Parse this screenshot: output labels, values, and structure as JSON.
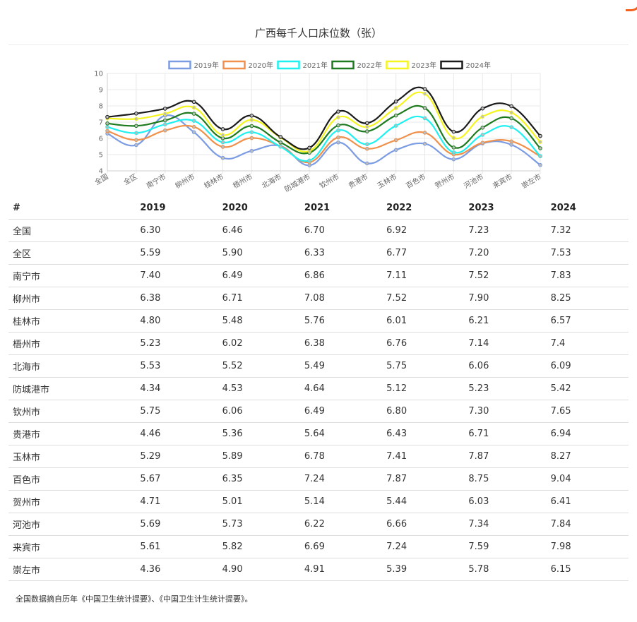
{
  "title": "广西每千人口床位数（张）",
  "note": "全国数据摘自历年《中国卫生统计提要》、《中国卫生计生统计提要》。",
  "table": {
    "corner": "#",
    "years": [
      "2019",
      "2020",
      "2021",
      "2022",
      "2023",
      "2024"
    ],
    "rows": [
      {
        "name": "全国",
        "vals": [
          "6.30",
          "6.46",
          "6.70",
          "6.92",
          "7.23",
          "7.32"
        ]
      },
      {
        "name": "全区",
        "vals": [
          "5.59",
          "5.90",
          "6.33",
          "6.77",
          "7.20",
          "7.53"
        ]
      },
      {
        "name": "南宁市",
        "vals": [
          "7.40",
          "6.49",
          "6.86",
          "7.11",
          "7.52",
          "7.83"
        ]
      },
      {
        "name": "柳州市",
        "vals": [
          "6.38",
          "6.71",
          "7.08",
          "7.52",
          "7.90",
          "8.25"
        ]
      },
      {
        "name": "桂林市",
        "vals": [
          "4.80",
          "5.48",
          "5.76",
          "6.01",
          "6.21",
          "6.57"
        ]
      },
      {
        "name": "梧州市",
        "vals": [
          "5.23",
          "6.02",
          "6.38",
          "6.76",
          "7.14",
          "7.4"
        ]
      },
      {
        "name": "北海市",
        "vals": [
          "5.53",
          "5.52",
          "5.49",
          "5.75",
          "6.06",
          "6.09"
        ]
      },
      {
        "name": "防城港市",
        "vals": [
          "4.34",
          "4.53",
          "4.64",
          "5.12",
          "5.23",
          "5.42"
        ]
      },
      {
        "name": "钦州市",
        "vals": [
          "5.75",
          "6.06",
          "6.49",
          "6.80",
          "7.30",
          "7.65"
        ]
      },
      {
        "name": "贵港市",
        "vals": [
          "4.46",
          "5.36",
          "5.64",
          "6.43",
          "6.71",
          "6.94"
        ]
      },
      {
        "name": "玉林市",
        "vals": [
          "5.29",
          "5.89",
          "6.78",
          "7.41",
          "7.87",
          "8.27"
        ]
      },
      {
        "name": "百色市",
        "vals": [
          "5.67",
          "6.35",
          "7.24",
          "7.87",
          "8.75",
          "9.04"
        ]
      },
      {
        "name": "贺州市",
        "vals": [
          "4.71",
          "5.01",
          "5.14",
          "5.44",
          "6.03",
          "6.41"
        ]
      },
      {
        "name": "河池市",
        "vals": [
          "5.69",
          "5.73",
          "6.22",
          "6.66",
          "7.34",
          "7.84"
        ]
      },
      {
        "name": "来宾市",
        "vals": [
          "5.61",
          "5.82",
          "6.69",
          "7.24",
          "7.59",
          "7.98"
        ]
      },
      {
        "name": "崇左市",
        "vals": [
          "4.36",
          "4.90",
          "4.91",
          "5.39",
          "5.78",
          "6.15"
        ]
      }
    ]
  },
  "chart_data": {
    "type": "line",
    "title": "广西每千人口床位数（张）",
    "xlabel": "",
    "ylabel": "",
    "categories": [
      "全国",
      "全区",
      "南宁市",
      "柳州市",
      "桂林市",
      "梧州市",
      "北海市",
      "防城港市",
      "钦州市",
      "贵港市",
      "玉林市",
      "百色市",
      "贺州市",
      "河池市",
      "来宾市",
      "崇左市"
    ],
    "ylim": [
      4,
      10
    ],
    "yticks": [
      4,
      5,
      6,
      7,
      8,
      9,
      10
    ],
    "grid": true,
    "legend_position": "top",
    "series": [
      {
        "name": "2019年",
        "color": "#7b9ce3",
        "values": [
          6.3,
          5.59,
          7.4,
          6.38,
          4.8,
          5.23,
          5.53,
          4.34,
          5.75,
          4.46,
          5.29,
          5.67,
          4.71,
          5.69,
          5.61,
          4.36
        ]
      },
      {
        "name": "2020年",
        "color": "#f0904a",
        "values": [
          6.46,
          5.9,
          6.49,
          6.71,
          5.48,
          6.02,
          5.52,
          4.53,
          6.06,
          5.36,
          5.89,
          6.35,
          5.01,
          5.73,
          5.82,
          4.9
        ]
      },
      {
        "name": "2021年",
        "color": "#1ff0f0",
        "values": [
          6.7,
          6.33,
          6.86,
          7.08,
          5.76,
          6.38,
          5.49,
          4.64,
          6.49,
          5.64,
          6.78,
          7.24,
          5.14,
          6.22,
          6.69,
          4.91
        ]
      },
      {
        "name": "2022年",
        "color": "#1e7a1e",
        "values": [
          6.92,
          6.77,
          7.11,
          7.52,
          6.01,
          6.76,
          5.75,
          5.12,
          6.8,
          6.43,
          7.41,
          7.87,
          5.44,
          6.66,
          7.24,
          5.39
        ]
      },
      {
        "name": "2023年",
        "color": "#f5f520",
        "values": [
          7.23,
          7.2,
          7.52,
          7.9,
          6.21,
          7.14,
          6.06,
          5.23,
          7.3,
          6.71,
          7.87,
          8.75,
          6.03,
          7.34,
          7.59,
          5.78
        ]
      },
      {
        "name": "2024年",
        "color": "#1a1a1a",
        "values": [
          7.32,
          7.53,
          7.83,
          8.25,
          6.57,
          7.4,
          6.09,
          5.42,
          7.65,
          6.94,
          8.27,
          9.04,
          6.41,
          7.84,
          7.98,
          6.15
        ]
      }
    ]
  }
}
